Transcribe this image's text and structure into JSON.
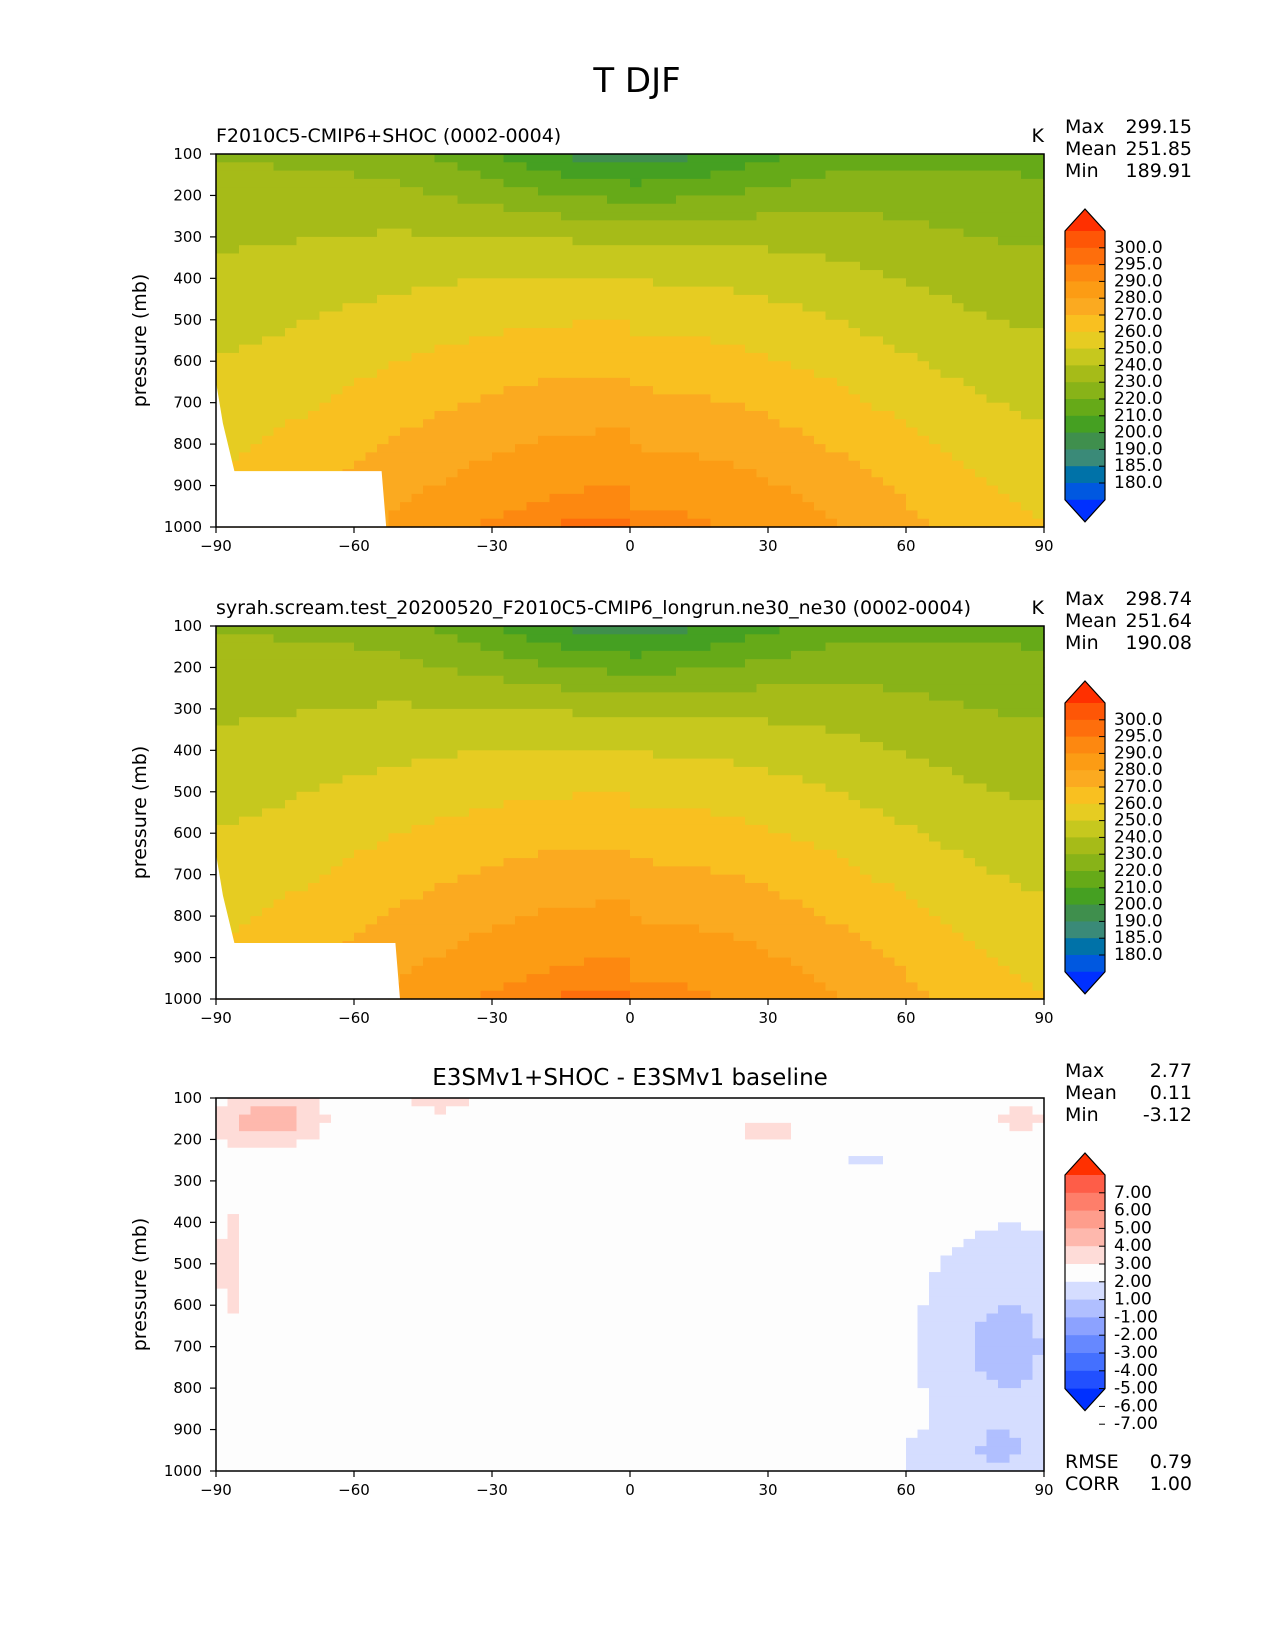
{
  "figure": {
    "title": "T DJF"
  },
  "colors": {
    "abs_levels": [
      "#0030ff",
      "#0058e0",
      "#0072a8",
      "#3a8a78",
      "#3f8f4d",
      "#45a022",
      "#66aa18",
      "#88b318",
      "#a6bb18",
      "#c6c81e",
      "#e6cc22",
      "#f9c020",
      "#fbaa20",
      "#fc9c14",
      "#fd8810",
      "#fe6e0c",
      "#fe5606",
      "#ff3000"
    ],
    "diff_levels": [
      "#0030ff",
      "#2250ff",
      "#4470ff",
      "#6688ff",
      "#8ca2ff",
      "#b0bfff",
      "#d5ddff",
      "#fdfdfd",
      "#fedcd8",
      "#feb8ad",
      "#fe9d8c",
      "#fe7e6a",
      "#fe5d48",
      "#ff3000"
    ]
  },
  "chart_data": [
    {
      "type": "contour",
      "title": "F2010C5-CMIP6+SHOC (0002-0004)",
      "units": "K",
      "ylabel": "pressure (mb)",
      "xlabel": "",
      "xlim": [
        -90,
        90
      ],
      "ylim": [
        1000,
        100
      ],
      "xticks": [
        -90,
        -60,
        -30,
        0,
        30,
        60,
        90
      ],
      "yticks": [
        100,
        200,
        300,
        400,
        500,
        600,
        700,
        800,
        900,
        1000
      ],
      "stats": {
        "max_label": "Max",
        "max": "299.15",
        "mean_label": "Mean",
        "mean": "251.85",
        "min_label": "Min",
        "min": "189.91"
      },
      "colorbar_levels": [
        "300.0",
        "295.0",
        "290.0",
        "280.0",
        "270.0",
        "260.0",
        "250.0",
        "240.0",
        "230.0",
        "220.0",
        "210.0",
        "200.0",
        "190.0",
        "185.0",
        "180.0"
      ]
    },
    {
      "type": "contour",
      "title": "syrah.scream.test_20200520_F2010C5-CMIP6_longrun.ne30_ne30 (0002-0004)",
      "units": "K",
      "ylabel": "pressure (mb)",
      "xlabel": "",
      "xlim": [
        -90,
        90
      ],
      "ylim": [
        1000,
        100
      ],
      "xticks": [
        -90,
        -60,
        -30,
        0,
        30,
        60,
        90
      ],
      "yticks": [
        100,
        200,
        300,
        400,
        500,
        600,
        700,
        800,
        900,
        1000
      ],
      "stats": {
        "max_label": "Max",
        "max": "298.74",
        "mean_label": "Mean",
        "mean": "251.64",
        "min_label": "Min",
        "min": "190.08"
      },
      "colorbar_levels": [
        "300.0",
        "295.0",
        "290.0",
        "280.0",
        "270.0",
        "260.0",
        "250.0",
        "240.0",
        "230.0",
        "220.0",
        "210.0",
        "200.0",
        "190.0",
        "185.0",
        "180.0"
      ]
    },
    {
      "type": "contour",
      "title": "E3SMv1+SHOC - E3SMv1 baseline",
      "units": "",
      "ylabel": "pressure (mb)",
      "xlabel": "",
      "xlim": [
        -90,
        90
      ],
      "ylim": [
        1000,
        100
      ],
      "xticks": [
        -90,
        -60,
        -30,
        0,
        30,
        60,
        90
      ],
      "yticks": [
        100,
        200,
        300,
        400,
        500,
        600,
        700,
        800,
        900,
        1000
      ],
      "stats": {
        "max_label": "Max",
        "max": "2.77",
        "mean_label": "Mean",
        "mean": "0.11",
        "min_label": "Min",
        "min": "-3.12"
      },
      "colorbar_levels": [
        "7.00",
        "6.00",
        "5.00",
        "4.00",
        "3.00",
        "2.00",
        "1.00",
        "-1.00",
        "-2.00",
        "-3.00",
        "-4.00",
        "-5.00",
        "-6.00",
        "-7.00"
      ],
      "errors": {
        "rmse_label": "RMSE",
        "rmse": "0.79",
        "corr_label": "CORR",
        "corr": "1.00"
      }
    }
  ]
}
